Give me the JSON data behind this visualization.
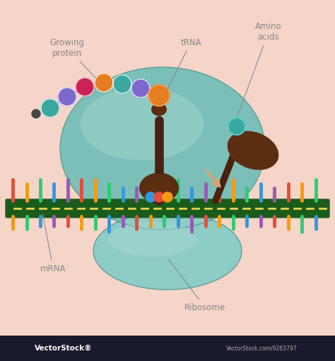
{
  "background_color": "#f5d5c8",
  "watermark_bg": "#1a1a2e",
  "watermark_text": "VectorStock®",
  "watermark_url": "VectorStock.com/9263797",
  "labels": {
    "growing_protein": "Growing\nprotein",
    "trna": "tRNA",
    "amino_acids": "Amino\nacids",
    "mrna": "mRNA",
    "ribosome": "Ribosome"
  },
  "label_color": "#888888",
  "ribosome_top_color": "#7bbfb8",
  "ribosome_top_edge": "#5aa09a",
  "ribosome_top_highlight": "#a8d8d2",
  "ribosome_bottom_color": "#8eccc6",
  "ribosome_bottom_edge": "#5aa09a",
  "mrna_strand_color": "#1a5c1a",
  "mrna_stripe_color": "#e8d44d",
  "mrna_edge_color": "#245e24",
  "codon_colors_above": [
    "#e74c3c",
    "#f39c12",
    "#2ecc71",
    "#3498db",
    "#9b59b6",
    "#e74c3c",
    "#f39c12",
    "#2ecc71",
    "#3498db",
    "#9b59b6",
    "#e74c3c",
    "#f39c12",
    "#2ecc71",
    "#3498db",
    "#9b59b6",
    "#e74c3c",
    "#f39c12",
    "#2ecc71",
    "#3498db",
    "#9b59b6",
    "#e74c3c",
    "#f39c12",
    "#2ecc71",
    "#3498db"
  ],
  "codon_colors_below": [
    "#f39c12",
    "#2ecc71",
    "#3498db",
    "#9b59b6",
    "#e74c3c",
    "#f39c12",
    "#2ecc71",
    "#3498db",
    "#9b59b6",
    "#e74c3c",
    "#f39c12",
    "#2ecc71",
    "#3498db",
    "#9b59b6",
    "#e74c3c",
    "#f39c12",
    "#2ecc71",
    "#3498db",
    "#9b59b6",
    "#e74c3c",
    "#f39c12",
    "#2ecc71",
    "#3498db",
    "#9b59b6"
  ],
  "trna_stem_color": "#4a2010",
  "trna_cap_color": "#5c2e10",
  "trna_dark": "#3a1a08",
  "protein_bead_colors": [
    "#5b4a9e",
    "#3aa8a0",
    "#e67e22",
    "#cc2255",
    "#e67e22",
    "#5b4a9e",
    "#e8a030"
  ],
  "amino_acid_color": "#3aa8a0",
  "arrow_color": "#d4a574",
  "connector_color": "#999999"
}
